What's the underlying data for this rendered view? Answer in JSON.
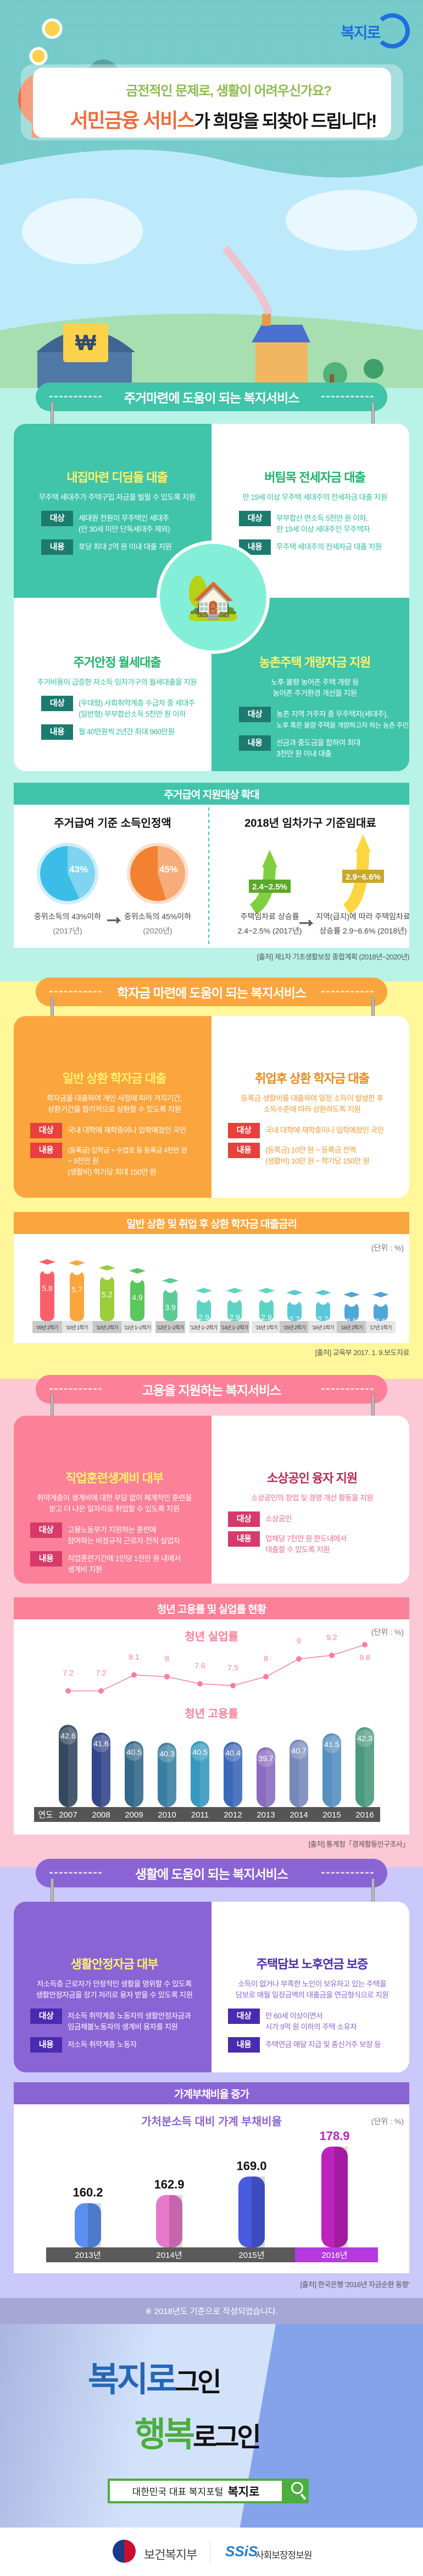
{
  "brand_logo": "복지로",
  "hero": {
    "subtitle": "금전적인 문제로, 생활이 어려우신가요?",
    "title_highlight": "서민금융 서비스",
    "title_rest": "가 희망을 되찾아 드립니다!"
  },
  "colors": {
    "housing": "#40c4aa",
    "housing_bg": "#b9f2e6",
    "housing_tag": "#1c7a6e",
    "student": "#fba53f",
    "student_bg": "#fff799",
    "student_tag": "#e8403c",
    "jobs": "#fc8097",
    "jobs_bg": "#fdc8d5",
    "jobs_tag": "#d63a6a",
    "life": "#8a63d5",
    "life_bg": "#cbc8fb",
    "life_tag": "#4a2ab0"
  },
  "sections": [
    {
      "banner": "주거마련에 도움이 되는 복지서비스",
      "cards": [
        {
          "title": "내집마련 디딤돌 대출",
          "desc": [
            "무주택 세대주가 주택구입 자금을 빌릴 수 있도록 지원"
          ],
          "target_label": "대상",
          "target": [
            "세대원 전원이 무주택인 세대주",
            "(만 30세 미만 단독세대주 제외)"
          ],
          "content_label": "내용",
          "content": [
            "호당 최대 2억 원 이내 대출 지원"
          ]
        },
        {
          "title": "버팀목 전세자금 대출",
          "desc": [
            "만 19세 이상 무주택 세대주의 전세자금 대출 지원"
          ],
          "target_label": "대상",
          "target": [
            "부부합산 연소득 5천만 원 이하,",
            "만 19세 이상 세대주인 무주택자"
          ],
          "content_label": "내용",
          "content": [
            "무주택 세대주의 전세자금 대출 지원"
          ]
        },
        {
          "title": "주거안정 월세대출",
          "desc": [
            "주거비용이 급증한 저소득 임차가구의 월세대출을 지원"
          ],
          "target_label": "대상",
          "target": [
            "(우대형) 사회취약계층 수급자 중 세대주",
            "(일반형) 부부합산소득 5천만 원 이하"
          ],
          "content_label": "내용",
          "content": [
            "월 40만원씩 2년간 최대 960만원"
          ]
        },
        {
          "title": "농촌주택 개량자금 지원",
          "desc": [
            "노후·불량 농어촌 주택 개량 등",
            "농어촌 주거환경 개선을 지원"
          ],
          "target_label": "대상",
          "target": [
            "농촌 지역 거주자 중 무주택자(세대주),",
            "노후 혹은 불량 주택을 개량하고자 하는 농촌 주민"
          ],
          "content_label": "내용",
          "content": [
            "선금과 중도금을 합하여 최대",
            "3천만 원 이내 대출"
          ]
        }
      ]
    },
    {
      "banner": "학자금 마련에 도움이 되는 복지서비스",
      "cards": [
        {
          "title": "일반 상환 학자금 대출",
          "desc": [
            "학자금을 대출하여 개인 사정에 따라 거치기간,",
            "상환기간을 합리적으로 상환할 수 있도록 지원"
          ],
          "target_label": "대상",
          "target": [
            "국내 대학에 재학중이나 입학예정인 국민"
          ],
          "content_label": "내용",
          "content": [
            "(등록금) 입학금 + 수업료 등 등록금 4천만 원",
            "~ 9천만 원",
            "(생활비) 학기당 최대 150만 원"
          ]
        },
        {
          "title": "취업후 상환 학자금 대출",
          "desc": [
            "등록금·생활비를 대출하여 일정 소득이 발생한 후",
            "소득수준에 따라 상환하도록 지원"
          ],
          "target_label": "대상",
          "target": [
            "국내 대학에 재학중이나 입학예정인 국민"
          ],
          "content_label": "내용",
          "content": [
            "(등록금) 10만 원 ~ 등록금 전액",
            "(생활비) 10만 원 ~ 학기당 150만 원"
          ]
        }
      ]
    },
    {
      "banner": "고용을 지원하는 복지서비스",
      "cards": [
        {
          "title": "직업훈련생계비 대부",
          "desc": [
            "취약계층이 생계비에 대한 부담 없이 체계적인 훈련을",
            "받고 더 나은 일자리로 취업할 수 있도록 지원"
          ],
          "target_label": "대상",
          "target": [
            "고용노동부가 지원하는 훈련에",
            "참여하는 비정규직 근로자·전직 실업자"
          ],
          "content_label": "내용",
          "content": [
            "직업훈련기간에 1인당 1천만 원 내에서",
            "생계비 지원"
          ]
        },
        {
          "title": "소상공인 융자 지원",
          "desc": [
            "소상공인의 창업 및 경영 개선 활동을 지원"
          ],
          "target_label": "대상",
          "target": [
            "소상공인"
          ],
          "content_label": "내용",
          "content": [
            "업체당 7천만 원 한도내에서",
            "대출할 수 있도록 지원"
          ]
        }
      ]
    },
    {
      "banner": "생활에 도움이 되는 복지서비스",
      "cards": [
        {
          "title": "생활안정자금 대부",
          "desc": [
            "저소득층 근로자가 안정적인 생활을 영위할 수 있도록",
            "생활안정자금을 장기 저리로 융자 받을 수 있도록 지원"
          ],
          "target_label": "대상",
          "target": [
            "저소득 취약계층 노동자의 생활안정자금과",
            "임금체불노동자의 생계비 융자를 지원"
          ],
          "content_label": "내용",
          "content": [
            "저소득 취약계층 노동자"
          ]
        },
        {
          "title": "주택담보 노후연금 보증",
          "desc": [
            "소득이 없거나 부족한 노인이 보유하고 있는 주택을",
            "담보로 매월 일정금액의 대출금을 연금형식으로 지원"
          ],
          "target_label": "대상",
          "target": [
            "만 60세 이상이면서",
            "시가 9억 원 이하의 주택 소유자"
          ],
          "content_label": "내용",
          "content": [
            "주택연금 매달 지급 및 종신거주 보장 등"
          ]
        }
      ]
    }
  ],
  "chart_data": [
    {
      "type": "pie",
      "header": "주거급여 지원대상 확대",
      "title": "주거급여 기준 소득인정액",
      "slices": [
        {
          "label": "43%",
          "value": 43,
          "caption": "중위소득의 43%이하",
          "year": "(2017년)",
          "color": "#3bbde8"
        },
        {
          "label": "45%",
          "value": 45,
          "caption": "중위소득의 45%이하",
          "year": "(2020년)",
          "color": "#f28232"
        }
      ],
      "source": "[출처] 제1차 기초생활보장 종합계획 (2018년~2020년)"
    },
    {
      "type": "bar",
      "title": "2018년 임차가구 기준임대료",
      "items": [
        {
          "label": "2.4~2.5%",
          "range": [
            2.4,
            2.5
          ],
          "caption": [
            "주택임차료 상승률",
            "2.4~2.5% (2017년)"
          ],
          "color": "#7ed03e"
        },
        {
          "label": "2.9~6.6%",
          "range": [
            2.9,
            6.6
          ],
          "caption": [
            "지역(급지)에 따라 주택임차료",
            "상승률 2.9~6.6% (2018년)"
          ],
          "color": "#fbd63f"
        }
      ]
    },
    {
      "type": "bar",
      "header": "일반 상환 및 취업 후 상환 학자금 대출금리",
      "unit": "(단위 : %)",
      "categories": [
        "'09년 2학기",
        "'10년 1학기",
        "'10년 2학기",
        "'11년 1~2학기",
        "'12년 1~2학기",
        "'13년 1~2학기",
        "'14년 1~2학기",
        "'15년 1학기",
        "'15년 2학기",
        "'16년 1학기",
        "'16년 2학기",
        "'17년 1학기"
      ],
      "values": [
        5.8,
        5.7,
        5.2,
        4.9,
        3.9,
        2.9,
        2.9,
        2.9,
        2.7,
        2.7,
        2.5,
        2.5
      ],
      "value_labels": [
        "5.8",
        "5.7",
        "5.2",
        "4.9",
        "3.9",
        "2.9",
        "2.9",
        "2.9",
        "2.7",
        "2.7",
        "2.5",
        "2.5"
      ],
      "colors": [
        "#f9606a",
        "#fba53f",
        "#9acd3a",
        "#5ac75a",
        "#5acb94",
        "#5dd3c4",
        "#5dd3c4",
        "#5dd3c4",
        "#5bc8d8",
        "#5bc8d8",
        "#4fa6d9",
        "#4fa6d9"
      ],
      "source": "[출처] 교육부 2017. 1. 9.보도자료"
    },
    {
      "type": "line",
      "header": "청년 고용률 및 실업률 현황",
      "title": "청년 실업률",
      "unit": "(단위 : %)",
      "x": [
        "2007",
        "2008",
        "2009",
        "2010",
        "2011",
        "2012",
        "2013",
        "2014",
        "2015",
        "2016"
      ],
      "values": [
        7.2,
        7.2,
        8.1,
        8.0,
        7.6,
        7.5,
        8.0,
        9.0,
        9.2,
        9.8
      ],
      "value_labels": [
        "7.2",
        "7.2",
        "8.1",
        "8",
        "7.6",
        "7.5",
        "8",
        "9",
        "9.2",
        "9.8"
      ],
      "color": "#fc8097"
    },
    {
      "type": "bar",
      "title": "청년 고용률",
      "xlabel": "연도",
      "x": [
        "2007",
        "2008",
        "2009",
        "2010",
        "2011",
        "2012",
        "2013",
        "2014",
        "2015",
        "2016"
      ],
      "values": [
        42.6,
        41.6,
        40.5,
        40.3,
        40.5,
        40.4,
        39.7,
        40.7,
        41.5,
        42.3
      ],
      "value_labels": [
        "42.6",
        "41.6",
        "40.5",
        "40.3",
        "40.5",
        "40.4",
        "39.7",
        "40.7",
        "41.5",
        "42.3"
      ],
      "colors": [
        "#34495e",
        "#33468a",
        "#33698a",
        "#3a7fa3",
        "#3599be",
        "#3b68b8",
        "#8a6bbf",
        "#7689b9",
        "#5490c0",
        "#4b9a7e"
      ],
      "source": "[출처] 통계청「경제활동인구조사」"
    },
    {
      "type": "bar",
      "header": "가계부채비율 증가",
      "title": "가처분소득 대비 가계 부채비율",
      "unit": "(단위 : %)",
      "categories": [
        "2013년",
        "2014년",
        "2015년",
        "2016년"
      ],
      "values": [
        160.2,
        162.9,
        169.0,
        178.9
      ],
      "value_labels": [
        "160.2",
        "162.9",
        "169.0",
        "178.9"
      ],
      "colors": [
        "#5a8ff0",
        "#e878cc",
        "#485ade",
        "#be22bd"
      ],
      "source": "[출처] 한국은행 '2016년 자금순환 동향'"
    }
  ],
  "note": "※ 2018년도 기준으로 작성되었습니다.",
  "promo": {
    "line1_a": "복지로",
    "line1_b": "그인",
    "line2_a": "행복",
    "line2_b": "로그인",
    "search_text": "대한민국 대표 복지포털",
    "search_brand": "복지로"
  },
  "footer": {
    "ministry": "보건복지부",
    "ssis_mark": "SSiS",
    "ssis_name": "사회보장정보원"
  }
}
